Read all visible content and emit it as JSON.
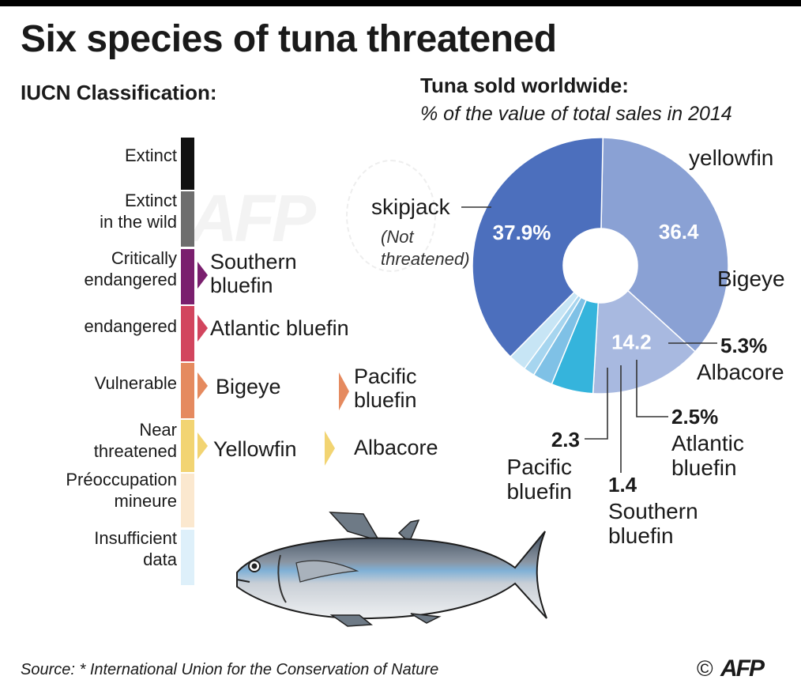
{
  "title": "Six species of tuna threatened",
  "iucn": {
    "heading": "IUCN Classification:",
    "categories": [
      {
        "label": "Extinct",
        "color": "#111111"
      },
      {
        "label": "Extinct\nin the wild",
        "color": "#6e6e6e"
      },
      {
        "label": "Critically\nendangered",
        "color": "#7a1f6e"
      },
      {
        "label": "endangered",
        "color": "#d2455e"
      },
      {
        "label": "Vulnerable",
        "color": "#e58a5f"
      },
      {
        "label": "Near\nthreatened",
        "color": "#f2d472"
      },
      {
        "label": "Préoccupation\nmineure",
        "color": "#fbe8cf"
      },
      {
        "label": "Insufficient\ndata",
        "color": "#def0fa"
      }
    ],
    "species": {
      "southern": "Southern\nbluefin",
      "atlantic": "Atlantic bluefin",
      "bigeye": "Bigeye",
      "pacific": "Pacific\nbluefin",
      "yellowfin": "Yellowfin",
      "albacore": "Albacore"
    }
  },
  "chart_data": {
    "type": "pie",
    "title": "Tuna sold worldwide:",
    "subtitle": "% of the value of total sales in 2014",
    "slices": [
      {
        "name": "yellowfin",
        "value": 36.4,
        "value_label": "36.4",
        "color": "#8aa1d4"
      },
      {
        "name": "Bigeye",
        "value": 14.2,
        "value_label": "14.2",
        "color": "#a8b9e0"
      },
      {
        "name": "Albacore",
        "value": 5.3,
        "value_label": "5.3%",
        "color": "#35b4dc"
      },
      {
        "name": "Atlantic\nbluefin",
        "value": 2.5,
        "value_label": "2.5%",
        "color": "#7fc1e6"
      },
      {
        "name": "Southern\nbluefin",
        "value": 1.4,
        "value_label": "1.4",
        "color": "#a6d5ef"
      },
      {
        "name": "Pacific\nbluefin",
        "value": 2.3,
        "value_label": "2.3",
        "color": "#c7e5f5"
      },
      {
        "name": "skipjack",
        "value": 37.9,
        "value_label": "37.9%",
        "color": "#4c6fbd"
      }
    ],
    "skipjack_note": "(Not\nthreatened)"
  },
  "source": "Source: * International Union for the Conservation of Nature",
  "credit": {
    "copyright": "©",
    "logo": "AFP"
  }
}
